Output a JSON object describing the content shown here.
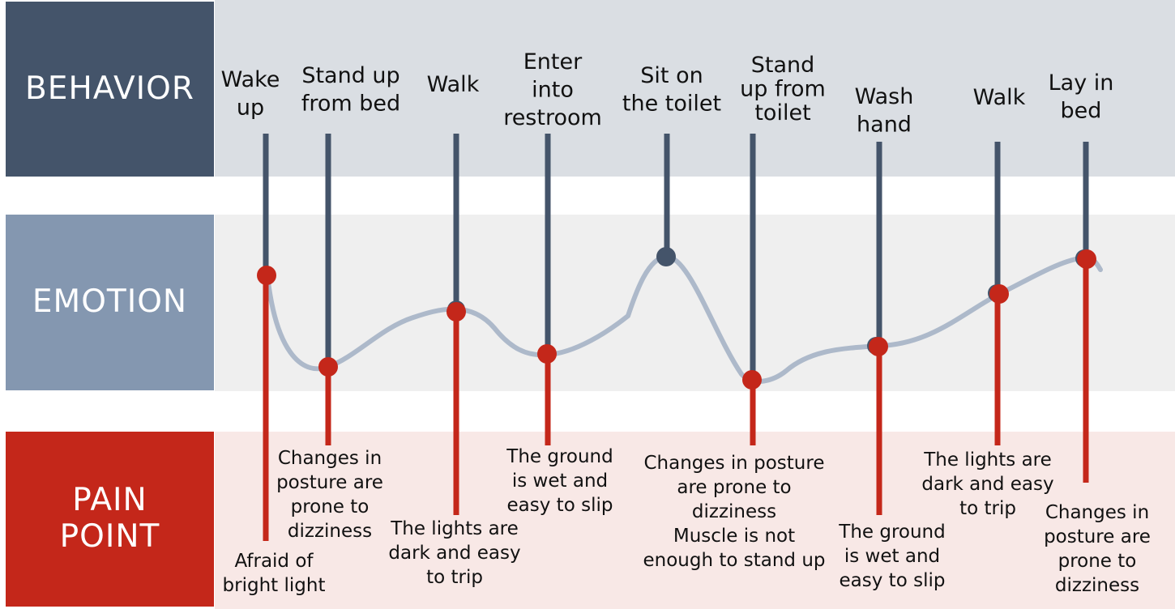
{
  "rows": {
    "behavior": {
      "label": "BEHAVIOR",
      "color": "#44546A",
      "band_color": "#DADEE3"
    },
    "emotion": {
      "label": "EMOTION",
      "color": "#8497B0",
      "band_color": "#EFEFEF"
    },
    "pain_point": {
      "label": "PAIN\nPOINT",
      "color": "#C4271A",
      "band_color": "#F8E8E6"
    }
  },
  "colors": {
    "behavior_stem": "#44546A",
    "pain_stem": "#C4271A",
    "emotion_curve": "#ADB9CA"
  },
  "stages": [
    {
      "behavior": [
        "Wake",
        "up"
      ],
      "pain": [
        "Afraid of",
        "bright light"
      ]
    },
    {
      "behavior": [
        "Stand up",
        "from bed"
      ],
      "pain": [
        "Changes in",
        "posture are",
        "prone to",
        "dizziness"
      ]
    },
    {
      "behavior": [
        "Walk"
      ],
      "pain": [
        "The lights are",
        "dark and easy",
        "to trip"
      ]
    },
    {
      "behavior": [
        "Enter",
        "into",
        "restroom"
      ],
      "pain": [
        "The ground",
        "is wet and",
        "easy to slip"
      ]
    },
    {
      "behavior": [
        "Sit on",
        "the toilet"
      ],
      "pain": []
    },
    {
      "behavior": [
        "Stand",
        "up from",
        "toilet"
      ],
      "pain": [
        "Changes in posture",
        "are prone to",
        "dizziness",
        "Muscle is not",
        "enough to stand up"
      ]
    },
    {
      "behavior": [
        "Wash",
        "hand"
      ],
      "pain": [
        "The ground",
        "is wet and",
        "easy to slip"
      ]
    },
    {
      "behavior": [
        "Walk"
      ],
      "pain": [
        "The lights are",
        "dark and easy",
        "to trip"
      ]
    },
    {
      "behavior": [
        "Lay in",
        "bed"
      ],
      "pain": [
        "Changes in",
        "posture are",
        "prone to",
        "dizziness"
      ]
    }
  ]
}
